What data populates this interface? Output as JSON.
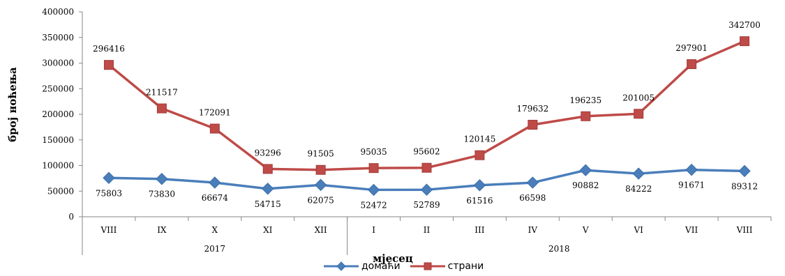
{
  "chart_data": {
    "type": "line",
    "xlabel": "мјесец",
    "ylabel": "број ноћења",
    "ylim": [
      0,
      400000
    ],
    "y_ticks": [
      "0",
      "50000",
      "100000",
      "150000",
      "200000",
      "250000",
      "300000",
      "350000",
      "400000"
    ],
    "y_tick_values": [
      0,
      50000,
      100000,
      150000,
      200000,
      250000,
      300000,
      350000,
      400000
    ],
    "categories": [
      "VIII",
      "IX",
      "X",
      "XI",
      "XII",
      "I",
      "II",
      "III",
      "IV",
      "V",
      "VI",
      "VII",
      "VIII"
    ],
    "year_groups": [
      {
        "label": "2017",
        "count": 5
      },
      {
        "label": "2018",
        "count": 8
      }
    ],
    "grid": false,
    "legend_position": "bottom",
    "series": [
      {
        "name": "домаћи",
        "color": "#4a7ebb",
        "marker": "diamond",
        "values": [
          75803,
          73830,
          66674,
          54715,
          62075,
          52472,
          52789,
          61516,
          66598,
          90882,
          84222,
          91671,
          89312
        ],
        "labels": [
          "75803",
          "73830",
          "66674",
          "54715",
          "62075",
          "52472",
          "52789",
          "61516",
          "66598",
          "90882",
          "84222",
          "91671",
          "89312"
        ]
      },
      {
        "name": "страни",
        "color": "#be4b48",
        "marker": "square",
        "values": [
          296416,
          211517,
          172091,
          93296,
          91505,
          95035,
          95602,
          120145,
          179632,
          196235,
          201005,
          297901,
          342700
        ],
        "labels": [
          "296416",
          "211517",
          "172091",
          "93296",
          "91505",
          "95035",
          "95602",
          "120145",
          "179632",
          "196235",
          "201005",
          "297901",
          "342700"
        ]
      }
    ]
  }
}
